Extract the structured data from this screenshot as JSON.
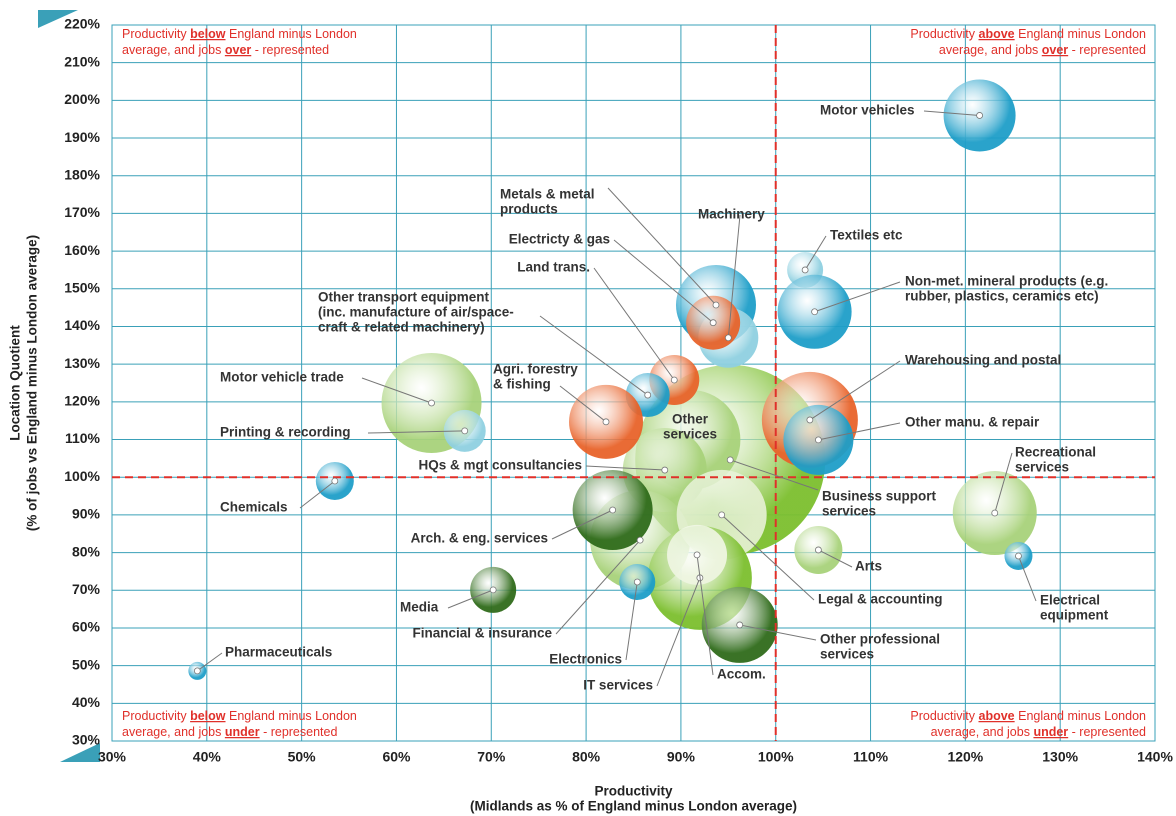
{
  "chart_data": {
    "type": "bubble",
    "x_title": [
      "Productivity",
      "(Midlands as % of England minus London average)"
    ],
    "y_title": [
      "Location Quotient",
      "(% of jobs vs England minus London average)"
    ],
    "xlim": [
      30,
      140
    ],
    "ylim": [
      30,
      220
    ],
    "xticks": [
      {
        "value": 30,
        "label": "30%"
      },
      {
        "value": 40,
        "label": "40%"
      },
      {
        "value": 50,
        "label": "50%"
      },
      {
        "value": 60,
        "label": "60%"
      },
      {
        "value": 70,
        "label": "70%"
      },
      {
        "value": 80,
        "label": "80%"
      },
      {
        "value": 90,
        "label": "90%"
      },
      {
        "value": 100,
        "label": "100%"
      },
      {
        "value": 110,
        "label": "110%"
      },
      {
        "value": 120,
        "label": "120%"
      },
      {
        "value": 130,
        "label": "130%"
      },
      {
        "value": 140,
        "label": "140%"
      }
    ],
    "yticks": [
      {
        "value": 30,
        "label": "30%"
      },
      {
        "value": 40,
        "label": "40%"
      },
      {
        "value": 50,
        "label": "50%"
      },
      {
        "value": 60,
        "label": "60%"
      },
      {
        "value": 70,
        "label": "70%"
      },
      {
        "value": 80,
        "label": "80%"
      },
      {
        "value": 90,
        "label": "90%"
      },
      {
        "value": 100,
        "label": "100%"
      },
      {
        "value": 110,
        "label": "110%"
      },
      {
        "value": 120,
        "label": "120%"
      },
      {
        "value": 130,
        "label": "130%"
      },
      {
        "value": 140,
        "label": "140%"
      },
      {
        "value": 150,
        "label": "150%"
      },
      {
        "value": 160,
        "label": "160%"
      },
      {
        "value": 170,
        "label": "170%"
      },
      {
        "value": 180,
        "label": "180%"
      },
      {
        "value": 190,
        "label": "190%"
      },
      {
        "value": 200,
        "label": "200%"
      },
      {
        "value": 210,
        "label": "210%"
      },
      {
        "value": 220,
        "label": "220%"
      }
    ],
    "grid": true,
    "grid_color": "#3aa0b8",
    "ref_x": 100,
    "ref_y": 100,
    "ref_color": "#e0302a",
    "quadrant_notes": [
      [
        [
          "Productivity ",
          "below",
          " England minus London"
        ],
        [
          "average, and jobs ",
          "over",
          " - represented"
        ]
      ],
      [
        [
          "Productivity ",
          "above",
          " England minus London"
        ],
        [
          "average, and jobs ",
          "over",
          " - represented"
        ]
      ],
      [
        [
          "Productivity ",
          "below",
          " England minus London"
        ],
        [
          "average, and jobs ",
          "under",
          " - represented"
        ]
      ],
      [
        [
          "Productivity ",
          "above",
          " England minus London"
        ],
        [
          "average, and jobs ",
          "under",
          " - represented"
        ]
      ]
    ],
    "points": [
      {
        "label": [
          "Business support",
          "services"
        ],
        "x": 95.2,
        "y": 104.6,
        "size": 95,
        "color": "#7cbf2e"
      },
      {
        "label": [
          "Other",
          "services"
        ],
        "x": 91.0,
        "y": 109.9,
        "size": 50,
        "color": "#a8d27a"
      },
      {
        "label": [
          "HQs & mgt consultancies"
        ],
        "x": 88.3,
        "y": 101.9,
        "size": 42,
        "color": "#a8d27a"
      },
      {
        "label": [
          "Financial & insurance"
        ],
        "x": 85.7,
        "y": 83.3,
        "size": 50,
        "color": "#a8d27a"
      },
      {
        "label": [
          "Legal & accounting"
        ],
        "x": 94.3,
        "y": 90.0,
        "size": 45,
        "color": "#e3efcf"
      },
      {
        "label": [
          "IT services"
        ],
        "x": 92.0,
        "y": 73.3,
        "size": 52,
        "color": "#7cbf2e"
      },
      {
        "label": [
          "Accom."
        ],
        "x": 91.7,
        "y": 79.4,
        "size": 30,
        "color": "#eef5e0"
      },
      {
        "label": [
          "Arch. & eng. services"
        ],
        "x": 82.8,
        "y": 91.3,
        "size": 40,
        "color": "#2f6b1a"
      },
      {
        "label": [
          "Other professional",
          "services"
        ],
        "x": 96.2,
        "y": 60.8,
        "size": 38,
        "color": "#2f6b1a"
      },
      {
        "label": [
          "Land trans."
        ],
        "x": 89.3,
        "y": 125.8,
        "size": 25,
        "color": "#e8632a"
      },
      {
        "label": [
          "Metals & metal",
          "products"
        ],
        "x": 93.7,
        "y": 145.7,
        "size": 40,
        "color": "#1e9ec8"
      },
      {
        "label": [
          "Machinery"
        ],
        "x": 95.0,
        "y": 137.0,
        "size": 30,
        "color": "#8fd0e0"
      },
      {
        "label": [
          "Electricty & gas"
        ],
        "x": 93.4,
        "y": 141.0,
        "size": 27,
        "color": "#e8632a"
      },
      {
        "label": [
          "Other transport equipment",
          "(inc. manufacture of air/space-",
          "craft & related machinery)"
        ],
        "x": 86.5,
        "y": 121.8,
        "size": 22,
        "color": "#1e9ec8"
      },
      {
        "label": [
          "Agri. forestry",
          "& fishing"
        ],
        "x": 82.1,
        "y": 114.7,
        "size": 37,
        "color": "#e8632a"
      },
      {
        "label": [
          "Motor vehicle trade"
        ],
        "x": 63.7,
        "y": 119.7,
        "size": 50,
        "color": "#a8d27a"
      },
      {
        "label": [
          "Printing & recording"
        ],
        "x": 67.2,
        "y": 112.3,
        "size": 21,
        "color": "#8fd0e0"
      },
      {
        "label": [
          "Chemicals"
        ],
        "x": 53.5,
        "y": 99.0,
        "size": 19,
        "color": "#1e9ec8"
      },
      {
        "label": [
          "Electronics"
        ],
        "x": 85.4,
        "y": 72.2,
        "size": 18,
        "color": "#1e9ec8"
      },
      {
        "label": [
          "Media"
        ],
        "x": 70.2,
        "y": 70.1,
        "size": 23,
        "color": "#2f6b1a"
      },
      {
        "label": [
          "Pharmaceuticals"
        ],
        "x": 39.0,
        "y": 48.6,
        "size": 9,
        "color": "#1e9ec8"
      },
      {
        "label": [
          "Motor vehicles"
        ],
        "x": 121.5,
        "y": 196.0,
        "size": 36,
        "color": "#1e9ec8"
      },
      {
        "label": [
          "Textiles etc"
        ],
        "x": 103.1,
        "y": 155.0,
        "size": 18,
        "color": "#8fd0e0"
      },
      {
        "label": [
          "Non-met. mineral products (e.g.",
          "rubber, plastics, ceramics etc)"
        ],
        "x": 104.1,
        "y": 143.9,
        "size": 37,
        "color": "#1e9ec8"
      },
      {
        "label": [
          "Warehousing and postal"
        ],
        "x": 103.6,
        "y": 115.2,
        "size": 48,
        "color": "#e8632a"
      },
      {
        "label": [
          "Other manu. & repair"
        ],
        "x": 104.5,
        "y": 109.9,
        "size": 35,
        "color": "#1e9ec8"
      },
      {
        "label": [
          "Recreational",
          "services"
        ],
        "x": 123.1,
        "y": 90.5,
        "size": 42,
        "color": "#a8d27a"
      },
      {
        "label": [
          "Arts"
        ],
        "x": 104.5,
        "y": 80.7,
        "size": 24,
        "color": "#a8d27a"
      },
      {
        "label": [
          "Electrical",
          "equipment"
        ],
        "x": 125.6,
        "y": 79.1,
        "size": 14,
        "color": "#1e9ec8"
      }
    ]
  }
}
